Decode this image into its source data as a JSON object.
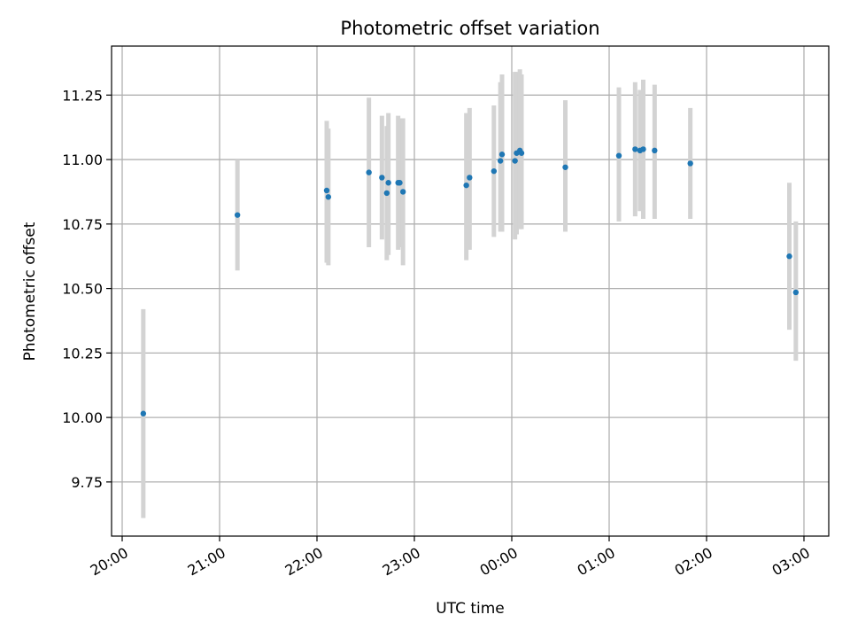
{
  "chart_data": {
    "type": "scatter",
    "title": "Photometric offset variation",
    "xlabel": "UTC time",
    "ylabel": "Photometric offset",
    "x_tick_labels": [
      "20:00",
      "21:00",
      "22:00",
      "23:00",
      "00:00",
      "01:00",
      "02:00",
      "03:00"
    ],
    "y_tick_labels": [
      "9.75",
      "10.00",
      "10.25",
      "10.50",
      "10.75",
      "11.00",
      "11.25"
    ],
    "ylim": [
      9.54,
      11.44
    ],
    "grid": true,
    "point_color": "#1f77b4",
    "errorbar_color": "#d3d3d3",
    "points": [
      {
        "x": "20:13",
        "y": 10.015,
        "ymin": 9.61,
        "ymax": 10.42
      },
      {
        "x": "21:11",
        "y": 10.785,
        "ymin": 10.57,
        "ymax": 11.0
      },
      {
        "x": "22:06",
        "y": 10.88,
        "ymin": 10.6,
        "ymax": 11.15
      },
      {
        "x": "22:07",
        "y": 10.855,
        "ymin": 10.59,
        "ymax": 11.12
      },
      {
        "x": "22:32",
        "y": 10.95,
        "ymin": 10.66,
        "ymax": 11.24
      },
      {
        "x": "22:40",
        "y": 10.93,
        "ymin": 10.69,
        "ymax": 11.17
      },
      {
        "x": "22:43",
        "y": 10.87,
        "ymin": 10.61,
        "ymax": 11.13
      },
      {
        "x": "22:44",
        "y": 10.91,
        "ymin": 10.63,
        "ymax": 11.18
      },
      {
        "x": "22:50",
        "y": 10.91,
        "ymin": 10.65,
        "ymax": 11.17
      },
      {
        "x": "22:51",
        "y": 10.91,
        "ymin": 10.66,
        "ymax": 11.16
      },
      {
        "x": "22:53",
        "y": 10.875,
        "ymin": 10.59,
        "ymax": 11.16
      },
      {
        "x": "23:32",
        "y": 10.9,
        "ymin": 10.61,
        "ymax": 11.18
      },
      {
        "x": "23:34",
        "y": 10.93,
        "ymin": 10.65,
        "ymax": 11.2
      },
      {
        "x": "23:49",
        "y": 10.955,
        "ymin": 10.7,
        "ymax": 11.21
      },
      {
        "x": "23:53",
        "y": 10.995,
        "ymin": 10.72,
        "ymax": 11.3
      },
      {
        "x": "23:54",
        "y": 11.02,
        "ymin": 10.72,
        "ymax": 11.33
      },
      {
        "x": "00:02",
        "y": 10.995,
        "ymin": 10.69,
        "ymax": 11.34
      },
      {
        "x": "00:03",
        "y": 11.025,
        "ymin": 10.71,
        "ymax": 11.34
      },
      {
        "x": "00:05",
        "y": 11.035,
        "ymin": 10.73,
        "ymax": 11.35
      },
      {
        "x": "00:06",
        "y": 11.025,
        "ymin": 10.73,
        "ymax": 11.33
      },
      {
        "x": "00:33",
        "y": 10.97,
        "ymin": 10.72,
        "ymax": 11.23
      },
      {
        "x": "01:06",
        "y": 11.015,
        "ymin": 10.76,
        "ymax": 11.28
      },
      {
        "x": "01:16",
        "y": 11.04,
        "ymin": 10.78,
        "ymax": 11.3
      },
      {
        "x": "01:19",
        "y": 11.035,
        "ymin": 10.8,
        "ymax": 11.27
      },
      {
        "x": "01:21",
        "y": 11.04,
        "ymin": 10.77,
        "ymax": 11.31
      },
      {
        "x": "01:28",
        "y": 11.035,
        "ymin": 10.77,
        "ymax": 11.29
      },
      {
        "x": "01:50",
        "y": 10.985,
        "ymin": 10.77,
        "ymax": 11.2
      },
      {
        "x": "02:51",
        "y": 10.625,
        "ymin": 10.34,
        "ymax": 10.91
      },
      {
        "x": "02:55",
        "y": 10.485,
        "ymin": 10.22,
        "ymax": 10.76
      }
    ]
  }
}
